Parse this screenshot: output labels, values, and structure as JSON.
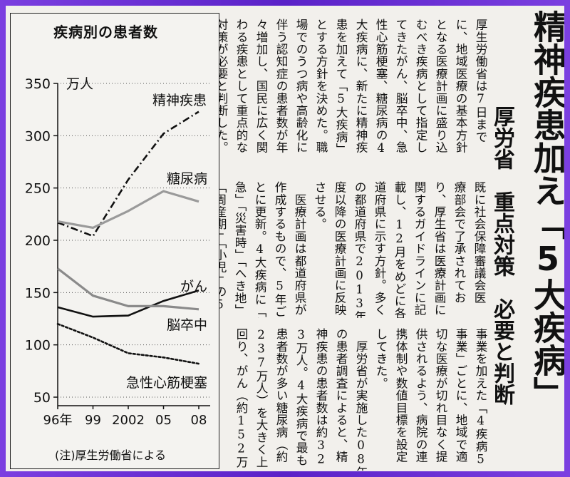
{
  "headline": "精神疾患加え「5大疾病」",
  "subhead_org": "厚労省",
  "subhead": "重点対策　必要と判断",
  "article": {
    "tier1": [
      "厚生労働省は7日まで",
      "に、地域医療の基本方針",
      "となる医療計画に盛り込",
      "むべき疾病として指定し",
      "てきたがん、脳卒中、急",
      "性心筋梗塞、糖尿病の4",
      "大疾病に、新たに精神疾",
      "患を加えて「5大疾病」",
      "とする方針を決めた。職",
      "場でのうつ病や高齢化に",
      "伴う認知症の患者数が年",
      "々増加し、国民に広く関",
      "わる疾患として重点的な",
      "対策が必要と判断した。"
    ],
    "tier2": [
      "既に社会保障審議会医",
      "療部会で了承されてお",
      "り、厚生省は医療計画に",
      "関するガイドラインに記",
      "載し、12月をめどに各都",
      "道府県に示す方針。多く",
      "の都道府県で2013年",
      "度以降の医療計画に反映",
      "させる。",
      "　医療計画は都道府県が",
      "作成するもので、5年ご",
      "とに更新。4大疾病に「救",
      "急」「災害時」「へき地」",
      "「周産期」「小児」の5"
    ],
    "tier3": [
      "事業を加えた「4疾病5",
      "事業」ごとに、地域で適",
      "切な医療が切れ目なく提",
      "供されるよう、病院の連",
      "携体制や数値目標を設定",
      "してきた。",
      "　厚労省が実施した08年",
      "の患者調査によると、精",
      "神疾患の患者数は約32",
      "3万人。4大疾病で最も",
      "患者数が多い糖尿病（約",
      "237万人）を大きく上",
      "回り、がん（約152万"
    ]
  },
  "chart": {
    "title": "疾病別の患者数",
    "unit": "万人",
    "note": "(注)厚生労働省による"
  },
  "chart_data": {
    "type": "line",
    "title": "疾病別の患者数",
    "ylabel": "万人",
    "x": [
      1996,
      1999,
      2002,
      2005,
      2008
    ],
    "x_tick_labels": [
      "96年",
      "99",
      "2002",
      "05",
      "08"
    ],
    "y_ticks": [
      50,
      100,
      150,
      200,
      250,
      300,
      350
    ],
    "ylim": [
      50,
      350
    ],
    "grid": "horizontal-dotted",
    "series": [
      {
        "name": "精神疾患",
        "values": [
          217,
          204,
          258,
          302,
          323
        ],
        "style": "dash-dot",
        "color": "#111111"
      },
      {
        "name": "糖尿病",
        "values": [
          218,
          212,
          228,
          247,
          237
        ],
        "style": "solid",
        "color": "#9a9a9a"
      },
      {
        "name": "がん",
        "values": [
          136,
          127,
          128,
          142,
          152
        ],
        "style": "solid",
        "color": "#111111"
      },
      {
        "name": "脳卒中",
        "values": [
          173,
          147,
          137,
          137,
          134
        ],
        "style": "solid",
        "color": "#8a8a8a"
      },
      {
        "name": "急性心筋梗塞",
        "values": [
          120,
          107,
          92,
          88,
          82
        ],
        "style": "dotted",
        "color": "#111111"
      }
    ]
  }
}
